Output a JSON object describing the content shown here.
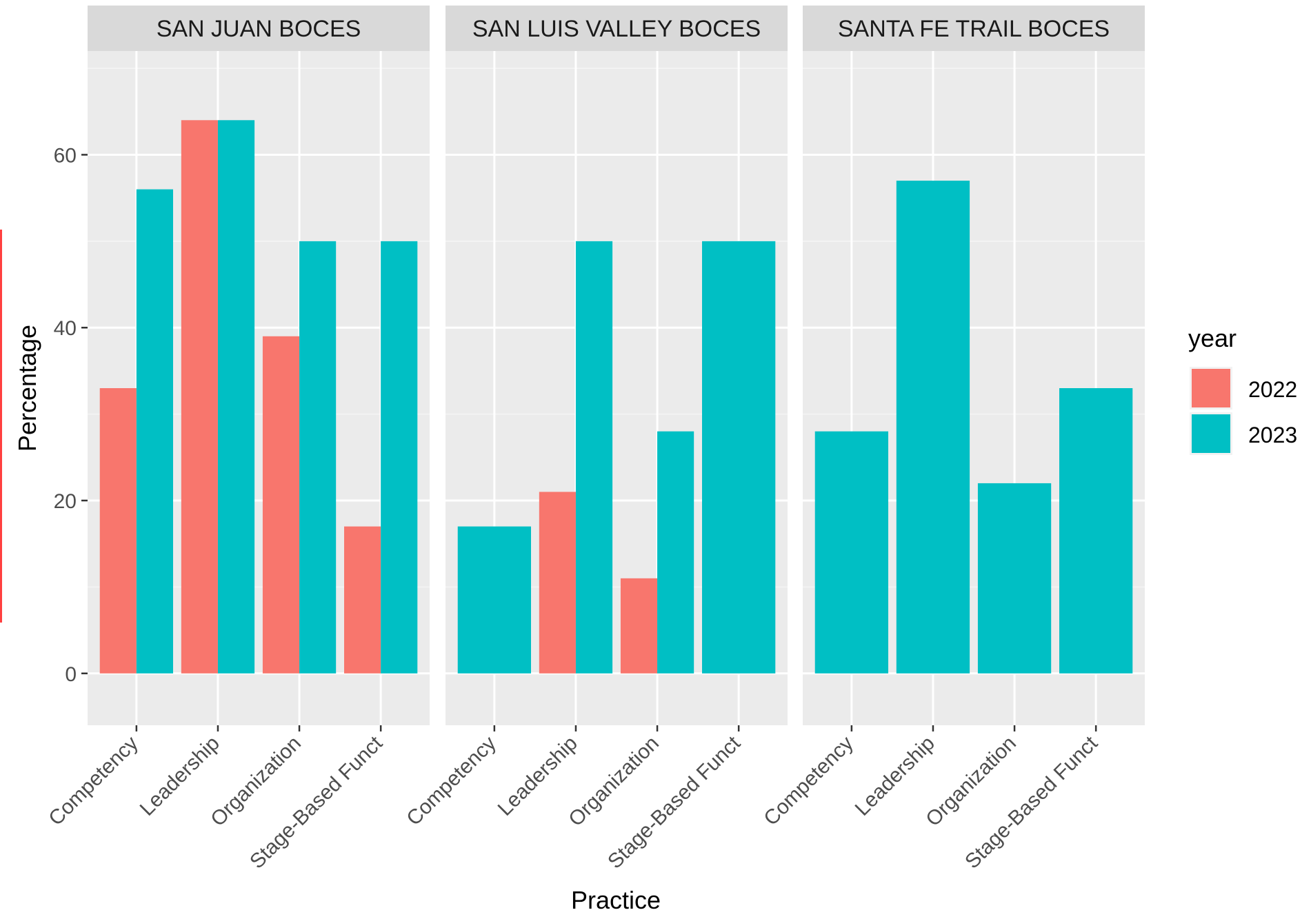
{
  "chart_data": {
    "type": "bar",
    "xlabel": "Practice",
    "ylabel": "Percentage",
    "ylim": [
      -6,
      72
    ],
    "yticks": [
      0,
      20,
      40,
      60
    ],
    "categories": [
      "Competency",
      "Leadership",
      "Organization",
      "Stage-Based Funct"
    ],
    "legend": {
      "title": "year",
      "position": "right",
      "entries": [
        {
          "label": "2022",
          "color": "#F8766D"
        },
        {
          "label": "2023",
          "color": "#00BFC4"
        }
      ]
    },
    "grid": true,
    "panels": [
      {
        "title": "SAN JUAN BOCES",
        "series": [
          {
            "name": "2022",
            "values": [
              33,
              64,
              39,
              17
            ]
          },
          {
            "name": "2023",
            "values": [
              56,
              64,
              50,
              50
            ]
          }
        ]
      },
      {
        "title": "SAN LUIS VALLEY BOCES",
        "series": [
          {
            "name": "2022",
            "values": [
              null,
              21,
              11,
              null
            ]
          },
          {
            "name": "2023",
            "values": [
              17,
              50,
              28,
              50
            ]
          }
        ]
      },
      {
        "title": "SANTA FE TRAIL BOCES",
        "series": [
          {
            "name": "2022",
            "values": [
              null,
              null,
              null,
              null
            ]
          },
          {
            "name": "2023",
            "values": [
              28,
              57,
              22,
              33
            ]
          }
        ]
      }
    ]
  }
}
